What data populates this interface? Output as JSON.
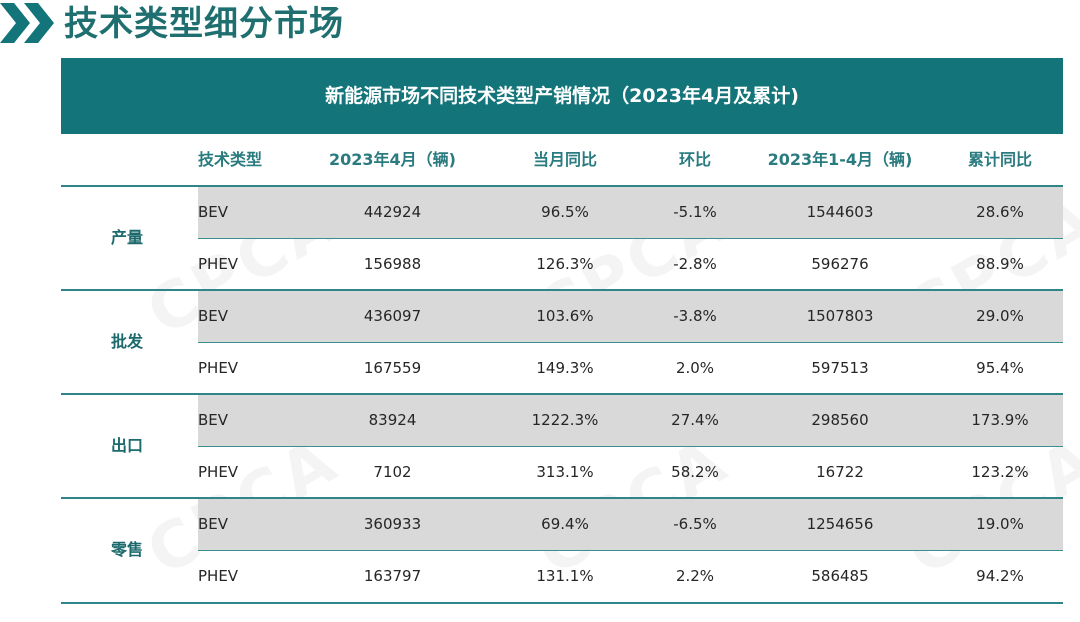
{
  "page_title": "技术类型细分市场",
  "table_title": "新能源市场不同技术类型产销情况（2023年4月及累计)",
  "headers": [
    "技术类型",
    "2023年4月（辆)",
    "当月同比",
    "环比",
    "2023年1-4月（辆)",
    "累计同比"
  ],
  "watermark": "CPCA",
  "groups": [
    {
      "label": "产量",
      "rows": [
        {
          "type": "BEV",
          "month": "442924",
          "yoy": "96.5%",
          "mom": "-5.1%",
          "ytd": "1544603",
          "ytd_yoy": "28.6%"
        },
        {
          "type": "PHEV",
          "month": "156988",
          "yoy": "126.3%",
          "mom": "-2.8%",
          "ytd": "596276",
          "ytd_yoy": "88.9%"
        }
      ]
    },
    {
      "label": "批发",
      "rows": [
        {
          "type": "BEV",
          "month": "436097",
          "yoy": "103.6%",
          "mom": "-3.8%",
          "ytd": "1507803",
          "ytd_yoy": "29.0%"
        },
        {
          "type": "PHEV",
          "month": "167559",
          "yoy": "149.3%",
          "mom": "2.0%",
          "ytd": "597513",
          "ytd_yoy": "95.4%"
        }
      ]
    },
    {
      "label": "出口",
      "rows": [
        {
          "type": "BEV",
          "month": "83924",
          "yoy": "1222.3%",
          "mom": "27.4%",
          "ytd": "298560",
          "ytd_yoy": "173.9%"
        },
        {
          "type": "PHEV",
          "month": "7102",
          "yoy": "313.1%",
          "mom": "58.2%",
          "ytd": "16722",
          "ytd_yoy": "123.2%"
        }
      ]
    },
    {
      "label": "零售",
      "rows": [
        {
          "type": "BEV",
          "month": "360933",
          "yoy": "69.4%",
          "mom": "-6.5%",
          "ytd": "1254656",
          "ytd_yoy": "19.0%"
        },
        {
          "type": "PHEV",
          "month": "163797",
          "yoy": "131.1%",
          "mom": "2.2%",
          "ytd": "586485",
          "ytd_yoy": "94.2%"
        }
      ]
    }
  ],
  "colors": {
    "accent": "#137479",
    "title": "#1f6f70",
    "row_shade": "#d9d9d9"
  }
}
